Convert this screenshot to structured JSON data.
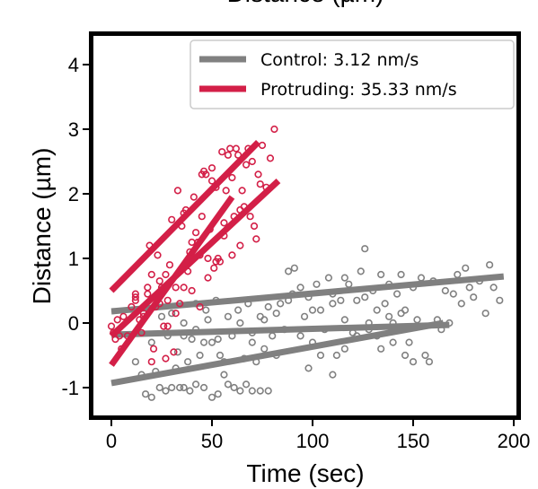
{
  "chart_data": {
    "type": "scatter",
    "title": "Distance (µm)",
    "xlabel": "Time (sec)",
    "ylabel": "Distance (µm)",
    "xlim": [
      -10,
      200
    ],
    "ylim": [
      -1.5,
      4.5
    ],
    "xticks": [
      0,
      50,
      100,
      150,
      200
    ],
    "yticks": [
      -1,
      0,
      1,
      2,
      3,
      4
    ],
    "xtick_labels": [
      "0",
      "50",
      "100",
      "150",
      "200"
    ],
    "ytick_labels": [
      "-1",
      "0",
      "1",
      "2",
      "3",
      "4"
    ],
    "grid": false,
    "legend_position": "top-right",
    "series": [
      {
        "name": "Control: 3.12 nm/s",
        "color": "#808080",
        "fit_lines": [
          {
            "x": [
              0,
              195
            ],
            "y": [
              0.18,
              0.72
            ]
          },
          {
            "x": [
              0,
              168
            ],
            "y": [
              -0.18,
              -0.03
            ]
          },
          {
            "x": [
              0,
              165
            ],
            "y": [
              -0.93,
              0.0
            ]
          }
        ],
        "points": [
          [
            12,
            -0.6
          ],
          [
            15,
            -0.8
          ],
          [
            17,
            -1.1
          ],
          [
            20,
            -1.15
          ],
          [
            22,
            -0.75
          ],
          [
            24,
            -1.0
          ],
          [
            27,
            -1.05
          ],
          [
            30,
            -1.0
          ],
          [
            32,
            -0.7
          ],
          [
            34,
            -1.0
          ],
          [
            36,
            -1.0
          ],
          [
            39,
            -1.05
          ],
          [
            42,
            -0.95
          ],
          [
            46,
            -1.0
          ],
          [
            50,
            -1.15
          ],
          [
            53,
            -1.1
          ],
          [
            56,
            -0.8
          ],
          [
            58,
            -0.95
          ],
          [
            61,
            -1.0
          ],
          [
            64,
            -1.05
          ],
          [
            67,
            -0.95
          ],
          [
            70,
            -1.05
          ],
          [
            74,
            -1.05
          ],
          [
            78,
            -1.05
          ],
          [
            20,
            -0.3
          ],
          [
            25,
            0.1
          ],
          [
            28,
            -0.2
          ],
          [
            30,
            0.15
          ],
          [
            33,
            -0.45
          ],
          [
            36,
            0.0
          ],
          [
            38,
            -0.6
          ],
          [
            40,
            -0.25
          ],
          [
            42,
            0.3
          ],
          [
            44,
            -0.5
          ],
          [
            46,
            -0.3
          ],
          [
            48,
            0.05
          ],
          [
            50,
            -0.3
          ],
          [
            52,
            0.35
          ],
          [
            54,
            -0.5
          ],
          [
            56,
            -0.6
          ],
          [
            60,
            -0.2
          ],
          [
            63,
            0.2
          ],
          [
            66,
            -0.55
          ],
          [
            68,
            0.3
          ],
          [
            70,
            -0.3
          ],
          [
            72,
            -0.6
          ],
          [
            74,
            0.1
          ],
          [
            76,
            -0.4
          ],
          [
            78,
            0.25
          ],
          [
            80,
            -0.2
          ],
          [
            82,
            -0.5
          ],
          [
            84,
            0.3
          ],
          [
            86,
            -0.1
          ],
          [
            88,
            0.8
          ],
          [
            90,
            0.45
          ],
          [
            91,
            0.85
          ],
          [
            94,
            -0.2
          ],
          [
            96,
            0.1
          ],
          [
            98,
            0.4
          ],
          [
            100,
            -0.3
          ],
          [
            102,
            0.6
          ],
          [
            104,
            0.2
          ],
          [
            106,
            -0.1
          ],
          [
            108,
            0.7
          ],
          [
            110,
            0.45
          ],
          [
            112,
            -0.5
          ],
          [
            114,
            0.35
          ],
          [
            116,
            0.05
          ],
          [
            118,
            0.6
          ],
          [
            120,
            -0.15
          ],
          [
            122,
            0.35
          ],
          [
            124,
            0.8
          ],
          [
            126,
            1.15
          ],
          [
            128,
            0.0
          ],
          [
            130,
            0.5
          ],
          [
            132,
            -0.2
          ],
          [
            134,
            0.75
          ],
          [
            136,
            0.3
          ],
          [
            138,
            0.6
          ],
          [
            140,
            0.0
          ],
          [
            142,
            0.45
          ],
          [
            144,
            0.75
          ],
          [
            146,
            0.2
          ],
          [
            148,
            -0.3
          ],
          [
            150,
            0.55
          ],
          [
            152,
            0.05
          ],
          [
            154,
            0.7
          ],
          [
            156,
            -0.5
          ],
          [
            158,
            -0.6
          ],
          [
            160,
            0.65
          ],
          [
            162,
            0.05
          ],
          [
            164,
            -0.1
          ],
          [
            166,
            0.5
          ],
          [
            168,
            0.0
          ],
          [
            170,
            0.45
          ],
          [
            172,
            0.75
          ],
          [
            174,
            0.3
          ],
          [
            176,
            0.85
          ],
          [
            178,
            0.55
          ],
          [
            180,
            0.4
          ],
          [
            183,
            0.65
          ],
          [
            186,
            0.15
          ],
          [
            188,
            0.9
          ],
          [
            190,
            0.55
          ],
          [
            193,
            0.35
          ],
          [
            98,
            -0.7
          ],
          [
            104,
            -0.5
          ],
          [
            110,
            -0.8
          ],
          [
            116,
            -0.4
          ],
          [
            122,
            -0.2
          ],
          [
            128,
            -0.1
          ],
          [
            134,
            -0.4
          ],
          [
            140,
            -0.3
          ],
          [
            146,
            -0.5
          ],
          [
            150,
            -0.6
          ],
          [
            138,
            0.1
          ],
          [
            144,
            0.15
          ],
          [
            126,
            0.4
          ],
          [
            132,
            0.2
          ],
          [
            116,
            0.7
          ],
          [
            110,
            0.3
          ],
          [
            100,
            0.2
          ],
          [
            94,
            0.55
          ],
          [
            88,
            0.35
          ],
          [
            82,
            0.15
          ],
          [
            76,
            0.05
          ],
          [
            70,
            -0.15
          ],
          [
            64,
            0.0
          ],
          [
            58,
            0.1
          ],
          [
            53,
            -0.25
          ],
          [
            47,
            0.2
          ],
          [
            42,
            -0.1
          ],
          [
            36,
            -0.2
          ]
        ]
      },
      {
        "name": "Protruding: 35.33 nm/s",
        "color": "#d31f47",
        "fit_lines": [
          {
            "x": [
              0,
              73
            ],
            "y": [
              0.5,
              2.8
            ]
          },
          {
            "x": [
              0,
              83
            ],
            "y": [
              -0.2,
              2.2
            ]
          },
          {
            "x": [
              0,
              60
            ],
            "y": [
              -0.65,
              1.95
            ]
          }
        ],
        "points": [
          [
            0,
            -0.05
          ],
          [
            1,
            -0.15
          ],
          [
            2,
            -0.25
          ],
          [
            3,
            0.05
          ],
          [
            4,
            -0.2
          ],
          [
            5,
            -0.4
          ],
          [
            6,
            0.1
          ],
          [
            8,
            -0.2
          ],
          [
            10,
            0.25
          ],
          [
            12,
            0.35
          ],
          [
            12,
            0.4
          ],
          [
            12,
            0.45
          ],
          [
            14,
            0.05
          ],
          [
            15,
            -0.15
          ],
          [
            16,
            0.15
          ],
          [
            18,
            0.45
          ],
          [
            18,
            0.55
          ],
          [
            19,
            1.2
          ],
          [
            20,
            0.75
          ],
          [
            20,
            -0.6
          ],
          [
            21,
            -0.4
          ],
          [
            22,
            0.25
          ],
          [
            23,
            1.05
          ],
          [
            24,
            0.65
          ],
          [
            25,
            0.55
          ],
          [
            26,
            -0.05
          ],
          [
            27,
            0.75
          ],
          [
            27,
            -0.55
          ],
          [
            28,
            0.35
          ],
          [
            29,
            0.9
          ],
          [
            30,
            1.6
          ],
          [
            31,
            -0.45
          ],
          [
            32,
            0.55
          ],
          [
            33,
            2.05
          ],
          [
            34,
            0.3
          ],
          [
            35,
            1.5
          ],
          [
            36,
            1.7
          ],
          [
            37,
            1.75
          ],
          [
            38,
            0.8
          ],
          [
            39,
            1.1
          ],
          [
            40,
            0.5
          ],
          [
            41,
            1.95
          ],
          [
            42,
            1.4
          ],
          [
            43,
            1.25
          ],
          [
            44,
            0.25
          ],
          [
            45,
            1.65
          ],
          [
            45,
            2.3
          ],
          [
            46,
            2.35
          ],
          [
            47,
            2.3
          ],
          [
            48,
            1.0
          ],
          [
            49,
            1.45
          ],
          [
            50,
            2.4
          ],
          [
            50,
            2.2
          ],
          [
            51,
            0.85
          ],
          [
            52,
            2.1
          ],
          [
            53,
            1.0
          ],
          [
            54,
            0.95
          ],
          [
            55,
            2.65
          ],
          [
            56,
            1.55
          ],
          [
            57,
            2.05
          ],
          [
            58,
            2.6
          ],
          [
            59,
            2.7
          ],
          [
            60,
            2.25
          ],
          [
            61,
            1.65
          ],
          [
            62,
            2.7
          ],
          [
            63,
            2.6
          ],
          [
            64,
            1.75
          ],
          [
            65,
            2.05
          ],
          [
            66,
            1.8
          ],
          [
            67,
            2.45
          ],
          [
            68,
            2.7
          ],
          [
            69,
            1.65
          ],
          [
            70,
            2.5
          ],
          [
            71,
            1.5
          ],
          [
            72,
            1.3
          ],
          [
            73,
            2.3
          ],
          [
            74,
            2.15
          ],
          [
            75,
            2.75
          ],
          [
            77,
            2.1
          ],
          [
            79,
            2.55
          ],
          [
            81,
            3.0
          ],
          [
            16,
            0.1
          ],
          [
            24,
            0.3
          ],
          [
            28,
            -0.05
          ],
          [
            32,
            0.15
          ],
          [
            36,
            0.55
          ],
          [
            40,
            1.25
          ],
          [
            44,
            1.05
          ],
          [
            48,
            0.7
          ],
          [
            52,
            0.95
          ],
          [
            56,
            1.35
          ],
          [
            60,
            1.05
          ],
          [
            64,
            1.2
          ]
        ]
      }
    ]
  }
}
